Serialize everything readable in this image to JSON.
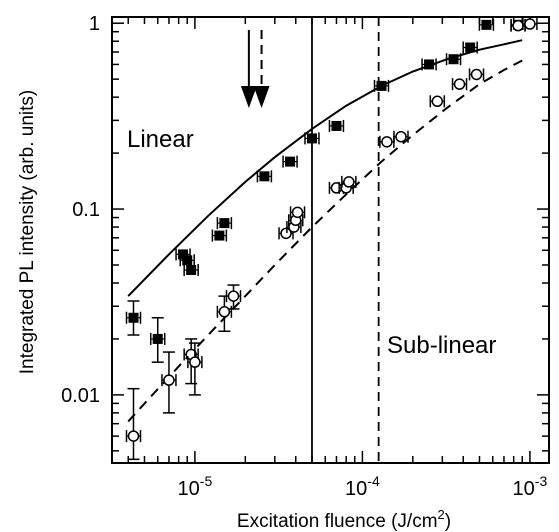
{
  "chart_data": {
    "type": "scatter",
    "title": "",
    "xlabel": "Excitation fluence (J/cm",
    "xlabel_sup": "2",
    "xlabel_tail": ")",
    "ylabel": "Integrated PL intensity (arb. units)",
    "xscale": "log",
    "yscale": "log",
    "xlim": [
      3.2e-06,
      0.0013
    ],
    "ylim": [
      0.0043,
      1.08
    ],
    "x_ticks": [
      {
        "value": 1e-05,
        "base": "10",
        "exp": "-5"
      },
      {
        "value": 0.0001,
        "base": "10",
        "exp": "-4"
      },
      {
        "value": 0.001,
        "base": "10",
        "exp": "-3"
      }
    ],
    "y_ticks": [
      {
        "value": 1,
        "label": "1"
      },
      {
        "value": 0.1,
        "label": "0.1"
      },
      {
        "value": 0.01,
        "label": "0.01"
      }
    ],
    "grid": false,
    "legend": "none",
    "annotations": {
      "linear": "Linear",
      "sublinear": "Sub-linear"
    },
    "vertical_lines": [
      {
        "x": 5e-05,
        "style": "solid"
      },
      {
        "x": 0.000125,
        "style": "dashed"
      }
    ],
    "arrows": [
      {
        "x": 2.1e-05,
        "style": "solid"
      },
      {
        "x": 2.5e-05,
        "style": "dashed"
      }
    ],
    "series": [
      {
        "marker": "filled-square",
        "line": "solid",
        "points": [
          {
            "x": 4.3e-06,
            "y": 0.026,
            "lo": 0.021,
            "hi": 0.032
          },
          {
            "x": 6e-06,
            "y": 0.02,
            "lo": 0.015,
            "hi": 0.026
          },
          {
            "x": 8.5e-06,
            "y": 0.057
          },
          {
            "x": 9e-06,
            "y": 0.053
          },
          {
            "x": 9.5e-06,
            "y": 0.047
          },
          {
            "x": 1.4e-05,
            "y": 0.072
          },
          {
            "x": 1.5e-05,
            "y": 0.084
          },
          {
            "x": 2.6e-05,
            "y": 0.15
          },
          {
            "x": 3.7e-05,
            "y": 0.18
          },
          {
            "x": 5e-05,
            "y": 0.24
          },
          {
            "x": 7e-05,
            "y": 0.28
          },
          {
            "x": 0.00013,
            "y": 0.46
          },
          {
            "x": 0.00025,
            "y": 0.6
          },
          {
            "x": 0.00035,
            "y": 0.64
          },
          {
            "x": 0.00044,
            "y": 0.74
          },
          {
            "x": 0.00055,
            "y": 0.98
          },
          {
            "x": 0.00085,
            "y": 0.98
          }
        ]
      },
      {
        "marker": "open-circle",
        "line": "dashed",
        "points": [
          {
            "x": 4.3e-06,
            "y": 0.006,
            "lo": 0.0045,
            "hi": 0.0108
          },
          {
            "x": 7e-06,
            "y": 0.012,
            "lo": 0.008,
            "hi": 0.017
          },
          {
            "x": 9.5e-06,
            "y": 0.0165,
            "lo": 0.0115,
            "hi": 0.02
          },
          {
            "x": 1e-05,
            "y": 0.015,
            "lo": 0.01,
            "hi": 0.019
          },
          {
            "x": 1.5e-05,
            "y": 0.028,
            "lo": 0.022,
            "hi": 0.034
          },
          {
            "x": 1.7e-05,
            "y": 0.034,
            "lo": 0.029,
            "hi": 0.039
          },
          {
            "x": 3.5e-05,
            "y": 0.074
          },
          {
            "x": 3.9e-05,
            "y": 0.08
          },
          {
            "x": 4e-05,
            "y": 0.087
          },
          {
            "x": 4.1e-05,
            "y": 0.096
          },
          {
            "x": 7e-05,
            "y": 0.13
          },
          {
            "x": 8e-05,
            "y": 0.13
          },
          {
            "x": 8.3e-05,
            "y": 0.14
          },
          {
            "x": 0.00014,
            "y": 0.23
          },
          {
            "x": 0.00017,
            "y": 0.245
          },
          {
            "x": 0.00028,
            "y": 0.38
          },
          {
            "x": 0.00038,
            "y": 0.47
          },
          {
            "x": 0.00048,
            "y": 0.53
          },
          {
            "x": 0.00085,
            "y": 0.97
          },
          {
            "x": 0.001,
            "y": 0.99
          }
        ]
      }
    ],
    "fits": [
      {
        "style": "solid",
        "points": [
          {
            "x": 4e-06,
            "y": 0.034
          },
          {
            "x": 7e-06,
            "y": 0.057
          },
          {
            "x": 1.2e-05,
            "y": 0.092
          },
          {
            "x": 2e-05,
            "y": 0.14
          },
          {
            "x": 3e-05,
            "y": 0.19
          },
          {
            "x": 5e-05,
            "y": 0.27
          },
          {
            "x": 8e-05,
            "y": 0.36
          },
          {
            "x": 0.00013,
            "y": 0.46
          },
          {
            "x": 0.0002,
            "y": 0.55
          },
          {
            "x": 0.00032,
            "y": 0.64
          },
          {
            "x": 0.0005,
            "y": 0.72
          },
          {
            "x": 0.0007,
            "y": 0.77
          },
          {
            "x": 0.0009,
            "y": 0.81
          }
        ]
      },
      {
        "style": "dashed",
        "points": [
          {
            "x": 4e-06,
            "y": 0.0072
          },
          {
            "x": 7e-06,
            "y": 0.0125
          },
          {
            "x": 1.2e-05,
            "y": 0.021
          },
          {
            "x": 2e-05,
            "y": 0.034
          },
          {
            "x": 3e-05,
            "y": 0.05
          },
          {
            "x": 5e-05,
            "y": 0.08
          },
          {
            "x": 8e-05,
            "y": 0.12
          },
          {
            "x": 0.00013,
            "y": 0.18
          },
          {
            "x": 0.0002,
            "y": 0.25
          },
          {
            "x": 0.00032,
            "y": 0.35
          },
          {
            "x": 0.0005,
            "y": 0.47
          },
          {
            "x": 0.0007,
            "y": 0.56
          },
          {
            "x": 0.0009,
            "y": 0.63
          }
        ]
      }
    ]
  }
}
